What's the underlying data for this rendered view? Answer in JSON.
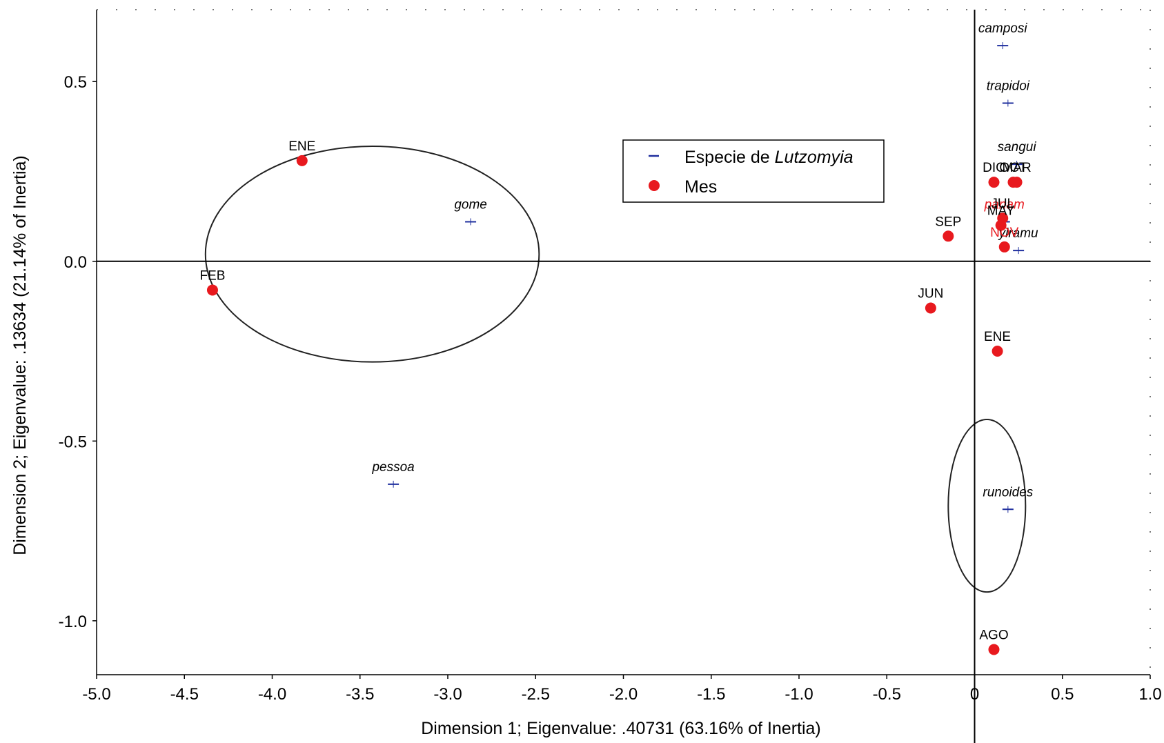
{
  "chart_data": {
    "type": "scatter",
    "xlabel": "Dimension 1; Eigenvalue: .40731 (63.16% of Inertia)",
    "ylabel": "Dimension 2; Eigenvalue: .13634 (21.14% of Inertia)",
    "xlim": [
      -5.0,
      1.0
    ],
    "ylim": [
      -1.15,
      0.7
    ],
    "x_ticks": [
      "-5.0",
      "-4.5",
      "-4.0",
      "-3.5",
      "-3.0",
      "-2.5",
      "-2.0",
      "-1.5",
      "-1.0",
      "-0.5",
      "0",
      "0.5",
      "1.0"
    ],
    "y_ticks": [
      "0.5",
      "0.0",
      "-0.5",
      "-1.0"
    ],
    "legend": {
      "placement": "top-center",
      "entries": [
        {
          "marker": "blue-dash",
          "text_prefix": "Especie de ",
          "text_italic": "Lutzomyia"
        },
        {
          "marker": "red-dot",
          "text": "Mes"
        }
      ]
    },
    "series": [
      {
        "name": "Especie de Lutzomyia",
        "color": "#1f2f9e",
        "points": [
          {
            "label": "camposi",
            "x": 0.16,
            "y": 0.6
          },
          {
            "label": "trapidoi",
            "x": 0.19,
            "y": 0.44
          },
          {
            "label": "sangui",
            "x": 0.24,
            "y": 0.27
          },
          {
            "label": "gome",
            "x": -2.87,
            "y": 0.11
          },
          {
            "label": "pessoa",
            "x": -3.31,
            "y": -0.62
          },
          {
            "label": "runoides",
            "x": 0.19,
            "y": -0.69
          },
          {
            "label": "ylramu",
            "x": 0.25,
            "y": 0.03
          },
          {
            "label": "panam",
            "x": 0.17,
            "y": 0.11,
            "label_color": "#e8191e"
          }
        ]
      },
      {
        "name": "Mes",
        "color": "#e8191e",
        "points": [
          {
            "label": "ENE",
            "x": -3.83,
            "y": 0.28
          },
          {
            "label": "FEB",
            "x": -4.34,
            "y": -0.08
          },
          {
            "label": "SEP",
            "x": -0.15,
            "y": 0.07
          },
          {
            "label": "JUN",
            "x": -0.25,
            "y": -0.13
          },
          {
            "label": "ENE",
            "x": 0.13,
            "y": -0.25
          },
          {
            "label": "AGO",
            "x": 0.11,
            "y": -1.08
          },
          {
            "label": "DIC",
            "x": 0.11,
            "y": 0.22
          },
          {
            "label": "OCT",
            "x": 0.22,
            "y": 0.22
          },
          {
            "label": "MAR",
            "x": 0.24,
            "y": 0.22
          },
          {
            "label": "JUL",
            "x": 0.16,
            "y": 0.12
          },
          {
            "label": "NOV",
            "x": 0.17,
            "y": 0.04,
            "label_color": "#e8191e"
          },
          {
            "label": "MAY",
            "x": 0.15,
            "y": 0.1
          }
        ]
      }
    ],
    "ellipses": [
      {
        "cx": -3.43,
        "cy": 0.02,
        "rx": 0.95,
        "ry": 0.3
      },
      {
        "cx": 0.07,
        "cy": -0.68,
        "rx": 0.22,
        "ry": 0.24
      }
    ],
    "reference_lines": {
      "x": 0.0,
      "y": 0.0
    }
  }
}
